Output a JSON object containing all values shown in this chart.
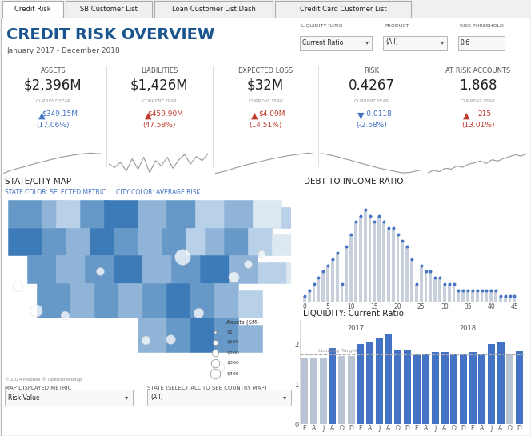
{
  "title": "CREDIT RISK OVERVIEW",
  "subtitle": "January 2017 - December 2018",
  "tabs": [
    "Credit Risk",
    "SB Customer List",
    "Loan Customer List Dash",
    "Credit Card Customer List"
  ],
  "filters": {
    "liquidity_ratio": {
      "label": "LIQUIDITY RATIO",
      "value": "Current Ratio"
    },
    "product": {
      "label": "PRODUCT",
      "value": "(All)"
    },
    "risk_threshold": {
      "label": "RISK THRESHOLD",
      "value": "0.6"
    }
  },
  "kpis": [
    {
      "label": "ASSETS",
      "value": "$2,396M",
      "change": "$349.15M",
      "pct": "(17.06%)",
      "up": true,
      "positive": true
    },
    {
      "label": "LIABILITIES",
      "value": "$1,426M",
      "change": "$459.90M",
      "pct": "(47.58%)",
      "up": true,
      "positive": false
    },
    {
      "label": "EXPECTED LOSS",
      "value": "$32M",
      "change": "$4.09M",
      "pct": "(14.51%)",
      "up": true,
      "positive": false
    },
    {
      "label": "RISK",
      "value": "0.4267",
      "change": "-0.0118",
      "pct": "(-2.68%)",
      "up": false,
      "positive": true
    },
    {
      "label": "AT RISK ACCOUNTS",
      "value": "1,868",
      "change": "215",
      "pct": "(13.01%)",
      "up": true,
      "positive": false
    }
  ],
  "sparklines": [
    [
      0.1,
      0.2,
      0.28,
      0.35,
      0.42,
      0.5,
      0.57,
      0.63,
      0.7,
      0.76,
      0.82,
      0.87,
      0.91,
      0.95,
      0.98,
      1.0,
      0.98,
      0.97
    ],
    [
      0.5,
      0.4,
      0.55,
      0.3,
      0.65,
      0.35,
      0.7,
      0.25,
      0.6,
      0.45,
      0.7,
      0.38,
      0.62,
      0.78,
      0.5,
      0.72,
      0.6,
      0.8
    ],
    [
      0.1,
      0.15,
      0.22,
      0.3,
      0.38,
      0.45,
      0.52,
      0.58,
      0.64,
      0.7,
      0.76,
      0.81,
      0.86,
      0.9,
      0.94,
      0.97,
      1.0,
      0.96
    ],
    [
      0.9,
      0.87,
      0.83,
      0.78,
      0.73,
      0.68,
      0.62,
      0.57,
      0.52,
      0.47,
      0.42,
      0.38,
      0.34,
      0.3,
      0.27,
      0.28,
      0.32,
      0.36
    ],
    [
      0.2,
      0.28,
      0.24,
      0.35,
      0.32,
      0.42,
      0.38,
      0.48,
      0.52,
      0.58,
      0.5,
      0.62,
      0.58,
      0.66,
      0.72,
      0.78,
      0.74,
      0.82
    ]
  ],
  "map_section": {
    "title": "STATE/CITY MAP",
    "subtitle1": "STATE COLOR: SELECTED METRIC",
    "subtitle2": "CITY COLOR: AVERAGE RISK",
    "map_label": "MAP DISPLAYED METRIC",
    "map_value": "Risk Value",
    "state_label": "STATE (SELECT ALL TO SEE COUNTRY MAP)",
    "state_value": "(All)",
    "copyright": "© 2024 Mapbox © OpenStreetMap"
  },
  "debt_chart": {
    "title": "DEBT TO INCOME RATIO",
    "x_ticks": [
      0,
      5,
      10,
      15,
      20,
      25,
      30,
      35,
      40,
      45
    ],
    "bar_heights": [
      1,
      2,
      3,
      4,
      5,
      6,
      7,
      8,
      3,
      9,
      11,
      13,
      14,
      15,
      14,
      13,
      14,
      13,
      12,
      12,
      11,
      10,
      9,
      7,
      3,
      6,
      5,
      5,
      4,
      4,
      3,
      3,
      3,
      2,
      2,
      2,
      2,
      2,
      2,
      2,
      2,
      2,
      1,
      1,
      1,
      1
    ],
    "bar_color": "#c8d0dc",
    "dot_color": "#4472c4"
  },
  "liquidity_chart": {
    "title": "LIQUIDITY: Current Ratio",
    "year_labels": [
      "2017",
      "2018"
    ],
    "month_labels": [
      "F",
      "A",
      "J",
      "A",
      "O",
      "D",
      "F",
      "A",
      "J",
      "A",
      "O",
      "D"
    ],
    "bar_heights": [
      1.65,
      1.65,
      1.65,
      1.9,
      1.7,
      1.7,
      2.0,
      2.05,
      2.15,
      2.25,
      1.85,
      1.85,
      1.75,
      1.75,
      1.8,
      1.8,
      1.75,
      1.75,
      1.8,
      1.75,
      2.0,
      2.05,
      1.75,
      1.82
    ],
    "bar_colors_flag": [
      false,
      false,
      false,
      true,
      false,
      false,
      true,
      true,
      true,
      true,
      true,
      true,
      true,
      true,
      true,
      true,
      true,
      true,
      true,
      true,
      true,
      true,
      false,
      true
    ],
    "bar_color_blue": "#4472c4",
    "bar_color_gray": "#b8c4d4",
    "liquidity_target": 1.75,
    "y_ticks": [
      0,
      1,
      2
    ],
    "target_label": "Liquidity Target"
  },
  "bg_color": "#ffffff",
  "tab_bg": "#f0f0f0",
  "tab_active_bg": "#ffffff",
  "tab_border": "#cccccc",
  "header_blue": "#1a5590",
  "positive_blue": "#4472c4",
  "negative_red": "#c0392b",
  "map_colors": [
    "#dce8f0",
    "#b8d0e8",
    "#8fb4d8",
    "#6698c8",
    "#3d7bb8",
    "#1a5490"
  ],
  "map_bg": "#dde8ee",
  "section_color": "#222222"
}
